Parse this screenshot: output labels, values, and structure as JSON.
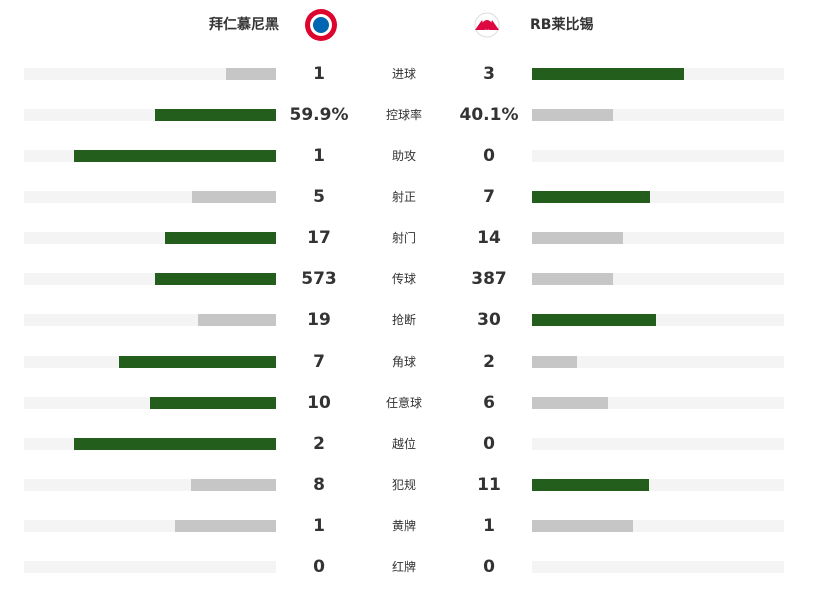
{
  "header": {
    "home": "拜仁慕尼黑",
    "away": "RB莱比锡"
  },
  "colors": {
    "lead": "#235e1d",
    "trail": "#c6c6c6",
    "track": "#f4f4f4"
  },
  "stats": [
    {
      "label": "进球",
      "home": 1,
      "away": 3
    },
    {
      "label": "控球率",
      "home": {
        "value": 59.9,
        "label": "59.9%"
      },
      "away": {
        "value": 40.1,
        "label": "40.1%"
      }
    },
    {
      "label": "助攻",
      "home": 1,
      "away": 0
    },
    {
      "label": "射正",
      "home": 5,
      "away": 7
    },
    {
      "label": "射门",
      "home": 17,
      "away": 14
    },
    {
      "label": "传球",
      "home": 573,
      "away": 387
    },
    {
      "label": "抢断",
      "home": 19,
      "away": 30
    },
    {
      "label": "角球",
      "home": 7,
      "away": 2
    },
    {
      "label": "任意球",
      "home": 10,
      "away": 6
    },
    {
      "label": "越位",
      "home": 2,
      "away": 0
    },
    {
      "label": "犯规",
      "home": 8,
      "away": 11
    },
    {
      "label": "黄牌",
      "home": 1,
      "away": 1
    },
    {
      "label": "红牌",
      "home": 0,
      "away": 0
    }
  ]
}
